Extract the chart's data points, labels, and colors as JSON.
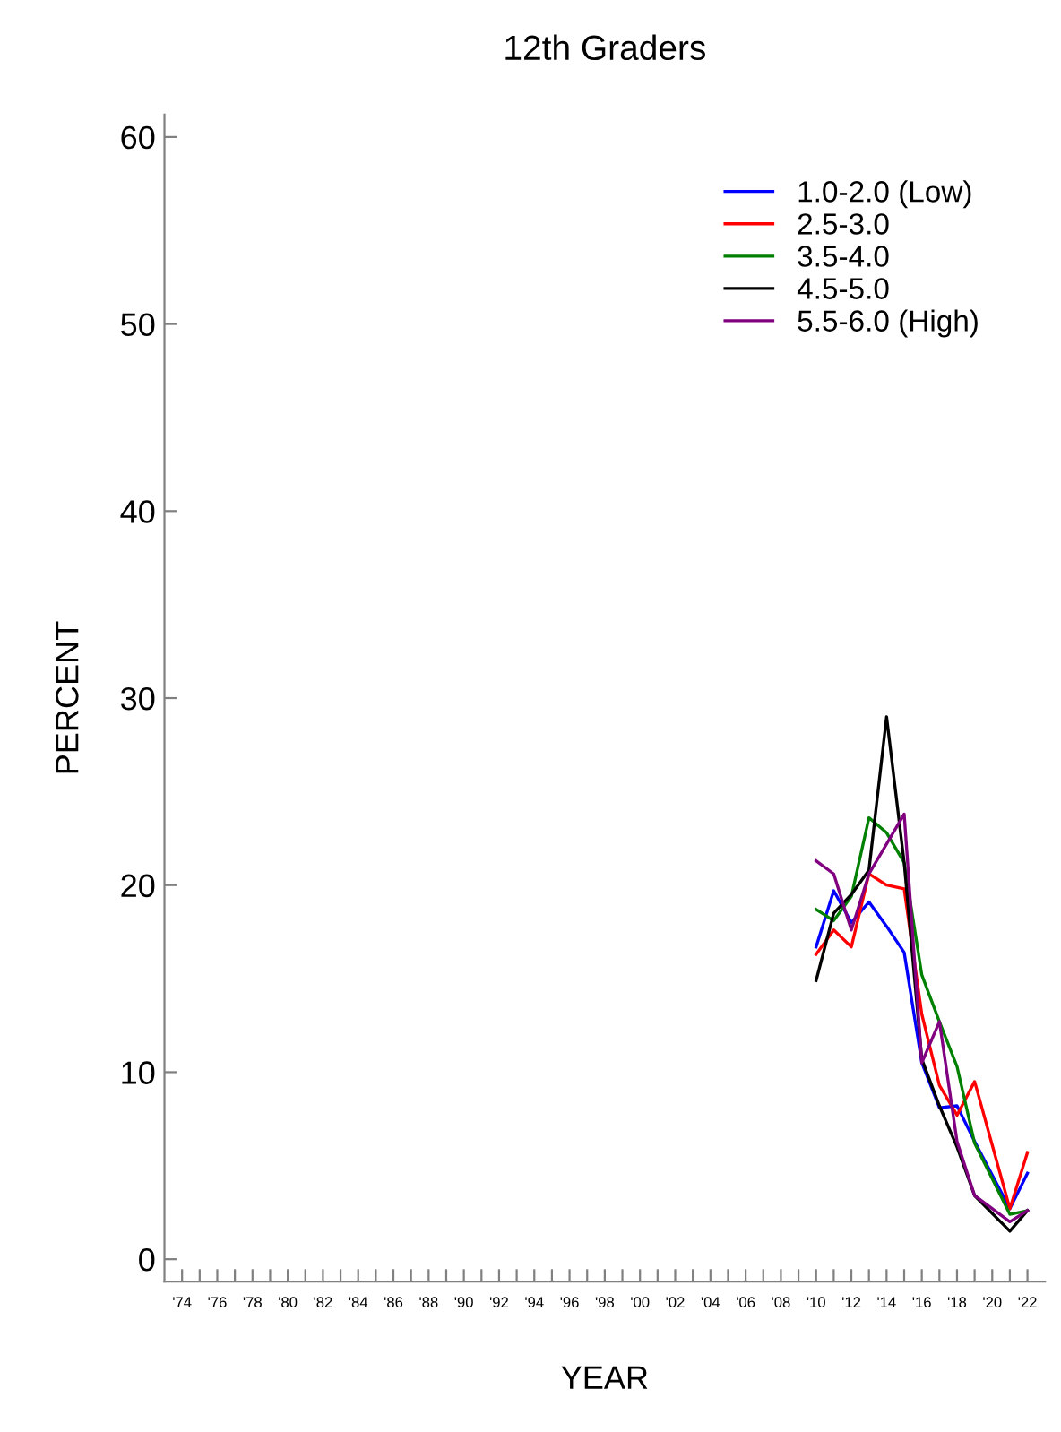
{
  "chart_data": {
    "type": "line",
    "title": "12th Graders",
    "xlabel": "YEAR",
    "ylabel": "PERCENT",
    "x": [
      2010,
      2011,
      2012,
      2013,
      2014,
      2015,
      2016,
      2017,
      2018,
      2019,
      2021,
      2022
    ],
    "series": [
      {
        "name": "1.0-2.0 (Low)",
        "color": "#0000ff",
        "values": [
          16.7,
          19.7,
          18.0,
          19.1,
          17.8,
          16.4,
          10.5,
          8.1,
          8.2,
          6.3,
          2.7,
          4.6
        ]
      },
      {
        "name": "2.5-3.0",
        "color": "#ff0000",
        "values": [
          16.3,
          17.6,
          16.7,
          20.6,
          20.0,
          19.8,
          13.1,
          9.3,
          7.7,
          9.5,
          2.7,
          5.7
        ]
      },
      {
        "name": "3.5-4.0",
        "color": "#008000",
        "values": [
          18.7,
          18.1,
          19.4,
          23.6,
          22.8,
          21.2,
          15.2,
          12.7,
          10.3,
          6.2,
          2.4,
          2.6
        ]
      },
      {
        "name": "4.5-5.0",
        "color": "#000000",
        "values": [
          14.9,
          18.5,
          19.5,
          20.8,
          29.0,
          21.2,
          10.7,
          8.2,
          6.0,
          3.4,
          1.5,
          2.6
        ]
      },
      {
        "name": "5.5-6.0 (High)",
        "color": "#800080",
        "values": [
          21.3,
          20.6,
          17.6,
          20.6,
          22.2,
          23.8,
          10.5,
          12.7,
          6.3,
          3.4,
          2.0,
          2.6
        ]
      }
    ],
    "xlim": [
      1973,
      2023
    ],
    "ylim": [
      -1.2,
      61.2
    ],
    "xticks": [
      {
        "value": 1974,
        "label": "'74"
      },
      {
        "value": 1975,
        "label": null
      },
      {
        "value": 1976,
        "label": "'76"
      },
      {
        "value": 1977,
        "label": null
      },
      {
        "value": 1978,
        "label": "'78"
      },
      {
        "value": 1979,
        "label": null
      },
      {
        "value": 1980,
        "label": "'80"
      },
      {
        "value": 1981,
        "label": null
      },
      {
        "value": 1982,
        "label": "'82"
      },
      {
        "value": 1983,
        "label": null
      },
      {
        "value": 1984,
        "label": "'84"
      },
      {
        "value": 1985,
        "label": null
      },
      {
        "value": 1986,
        "label": "'86"
      },
      {
        "value": 1987,
        "label": null
      },
      {
        "value": 1988,
        "label": "'88"
      },
      {
        "value": 1989,
        "label": null
      },
      {
        "value": 1990,
        "label": "'90"
      },
      {
        "value": 1991,
        "label": null
      },
      {
        "value": 1992,
        "label": "'92"
      },
      {
        "value": 1993,
        "label": null
      },
      {
        "value": 1994,
        "label": "'94"
      },
      {
        "value": 1995,
        "label": null
      },
      {
        "value": 1996,
        "label": "'96"
      },
      {
        "value": 1997,
        "label": null
      },
      {
        "value": 1998,
        "label": "'98"
      },
      {
        "value": 1999,
        "label": null
      },
      {
        "value": 2000,
        "label": "'00"
      },
      {
        "value": 2001,
        "label": null
      },
      {
        "value": 2002,
        "label": "'02"
      },
      {
        "value": 2003,
        "label": null
      },
      {
        "value": 2004,
        "label": "'04"
      },
      {
        "value": 2005,
        "label": null
      },
      {
        "value": 2006,
        "label": "'06"
      },
      {
        "value": 2007,
        "label": null
      },
      {
        "value": 2008,
        "label": "'08"
      },
      {
        "value": 2009,
        "label": null
      },
      {
        "value": 2010,
        "label": "'10"
      },
      {
        "value": 2011,
        "label": null
      },
      {
        "value": 2012,
        "label": "'12"
      },
      {
        "value": 2013,
        "label": null
      },
      {
        "value": 2014,
        "label": "'14"
      },
      {
        "value": 2015,
        "label": null
      },
      {
        "value": 2016,
        "label": "'16"
      },
      {
        "value": 2017,
        "label": null
      },
      {
        "value": 2018,
        "label": "'18"
      },
      {
        "value": 2019,
        "label": null
      },
      {
        "value": 2020,
        "label": "'20"
      },
      {
        "value": 2021,
        "label": null
      },
      {
        "value": 2022,
        "label": "'22"
      }
    ],
    "yticks": [
      0,
      10,
      20,
      30,
      40,
      50,
      60
    ],
    "legend": "top right",
    "grid": false
  }
}
